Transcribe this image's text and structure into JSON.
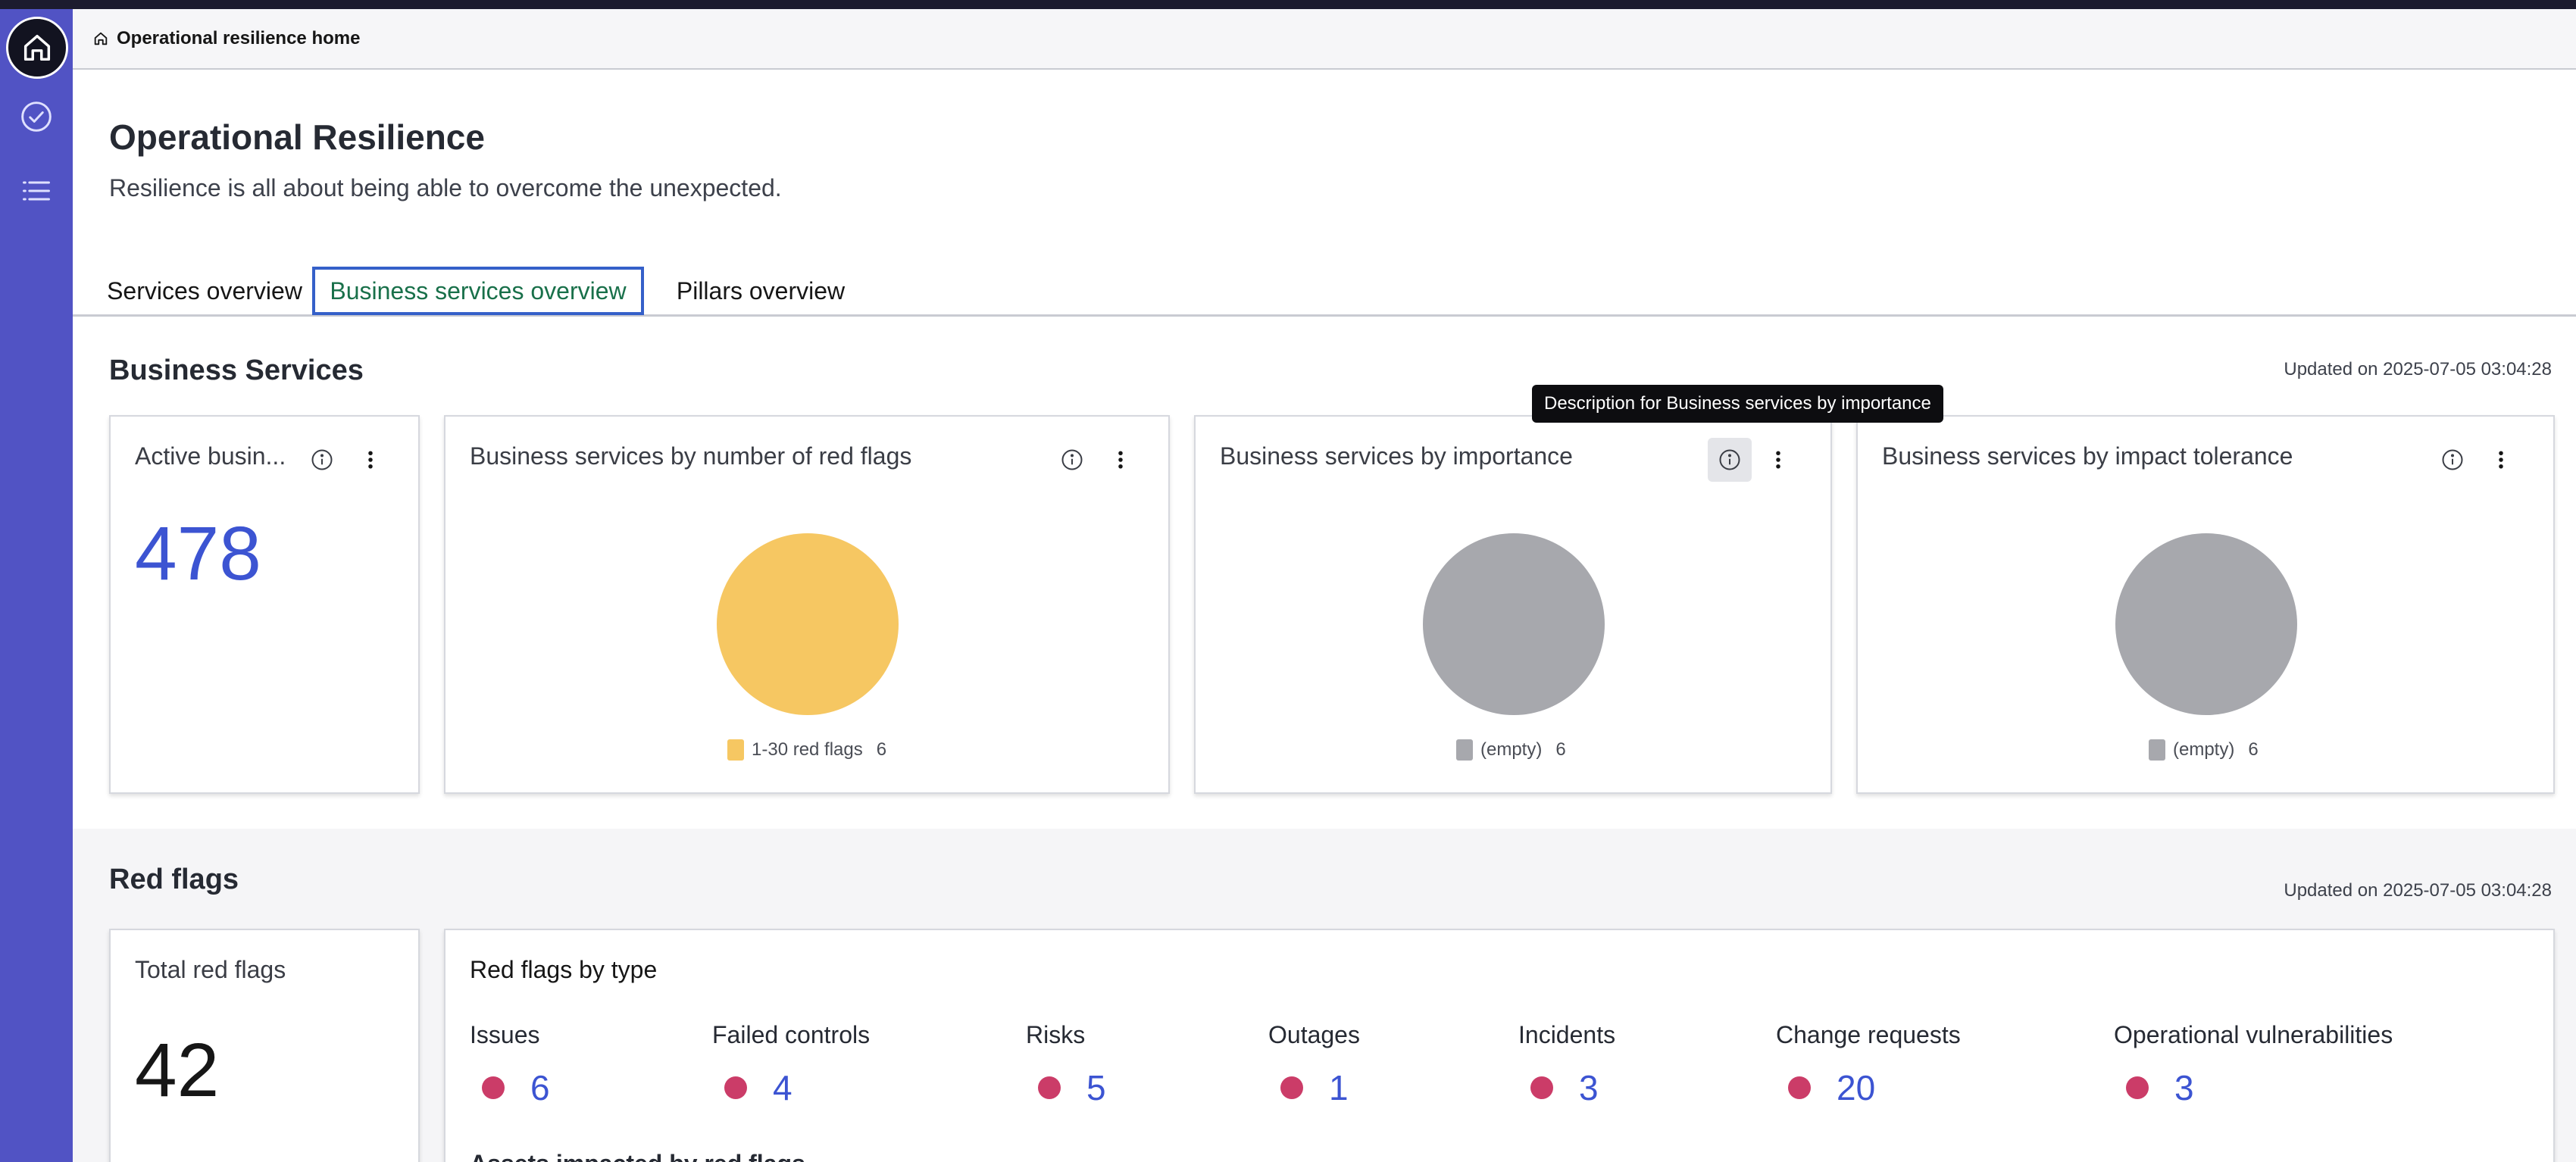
{
  "breadcrumb": {
    "label": "Operational resilience home"
  },
  "page": {
    "title": "Operational Resilience",
    "subtitle": "Resilience is all about being able to overcome the unexpected."
  },
  "tabs": [
    {
      "label": "Services overview",
      "active": false
    },
    {
      "label": "Business services overview",
      "active": true
    },
    {
      "label": "Pillars overview",
      "active": false
    }
  ],
  "business_services": {
    "title": "Business Services",
    "updated": "Updated on 2025-07-05 03:04:28",
    "active_card": {
      "title": "Active busin...",
      "value": "478"
    },
    "red_flags_card": {
      "title": "Business services by number of red flags",
      "legend_label": "1-30 red flags",
      "legend_count": "6",
      "color": "#f6c762"
    },
    "importance_card": {
      "title": "Business services by importance",
      "legend_label": "(empty)",
      "legend_count": "6",
      "color": "#a7a8ad"
    },
    "impact_card": {
      "title": "Business services by impact tolerance",
      "legend_label": "(empty)",
      "legend_count": "6",
      "color": "#a7a8ad"
    },
    "tooltip": "Description for Business services by importance"
  },
  "red_flags": {
    "title": "Red flags",
    "updated": "Updated on 2025-07-05 03:04:28",
    "total_card": {
      "title": "Total red flags",
      "value": "42"
    },
    "by_type_card": {
      "title": "Red flags by type",
      "types": [
        {
          "label": "Issues",
          "value": "6"
        },
        {
          "label": "Failed controls",
          "value": "4"
        },
        {
          "label": "Risks",
          "value": "5"
        },
        {
          "label": "Outages",
          "value": "1"
        },
        {
          "label": "Incidents",
          "value": "3"
        },
        {
          "label": "Change requests",
          "value": "20"
        },
        {
          "label": "Operational vulnerabilities",
          "value": "3"
        }
      ],
      "assets_label": "Assets impacted by red flags"
    }
  },
  "icons": {
    "home": "home-icon",
    "check": "check-circle-icon",
    "list": "list-icon",
    "info": "info-icon",
    "more": "more-vertical-icon"
  },
  "colors": {
    "sidebar": "#5153c4",
    "accent_blue": "#3c54d2",
    "active_tab_text": "#19704a",
    "flag_dot": "#cb3c68"
  }
}
